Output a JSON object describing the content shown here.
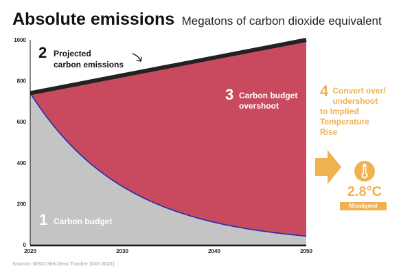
{
  "title": "Absolute emissions",
  "subtitle": "Megatons of carbon dioxide equivalent",
  "source": "Source: MSCI Net-Zero Tracker (Oct 2021)",
  "colors": {
    "projected_line": "#222222",
    "overshoot": "#c94a5e",
    "budget": "#c4c4c4",
    "budget_line": "#1a2fb0",
    "accent": "#f0b24f",
    "annotation_number_light": "#ffffff",
    "annotation_number_dark": "#111111"
  },
  "annotations": [
    {
      "number": "1",
      "lines": [
        "Carbon budget"
      ]
    },
    {
      "number": "2",
      "lines": [
        "Projected",
        "carbon emissions"
      ]
    },
    {
      "number": "3",
      "lines": [
        "Carbon budget",
        "overshoot"
      ]
    }
  ],
  "side": {
    "number": "4",
    "lines": [
      "Convert over/",
      "undershoot",
      "to Implied",
      "Temperature",
      "Rise"
    ],
    "temperature": "2.8°C",
    "status": "Misaligned",
    "icons": [
      "arrow-right-icon",
      "thermometer-icon"
    ]
  },
  "chart_data": {
    "type": "area",
    "x": [
      2020,
      2030,
      2040,
      2050
    ],
    "xlim": [
      2020,
      2050
    ],
    "ylim": [
      0,
      1000
    ],
    "yticks": [
      0,
      200,
      400,
      600,
      800,
      1000
    ],
    "xticks": [
      2020,
      2030,
      2040,
      2050
    ],
    "grid": true,
    "series": [
      {
        "values": [
          740,
          827,
          913,
          1000
        ],
        "style": "projected"
      },
      {
        "values": [
          740,
          285,
          105,
          35
        ],
        "style": "budget"
      }
    ]
  }
}
